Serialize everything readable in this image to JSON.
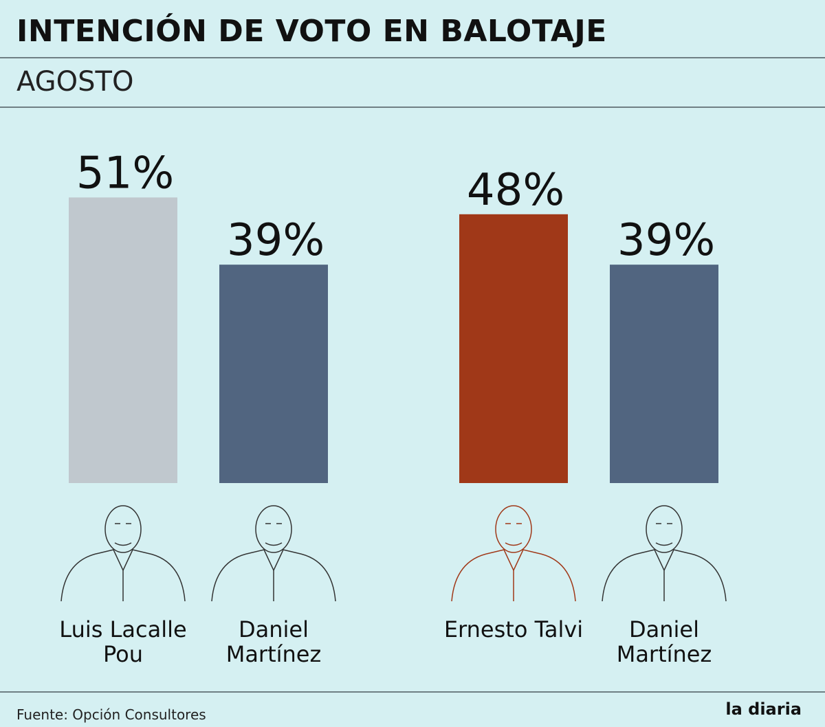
{
  "chart_data": {
    "type": "bar",
    "title": "INTENCIÓN DE VOTO EN BALOTAJE",
    "subtitle": "AGOSTO",
    "categories": [
      "Luis Lacalle Pou",
      "Daniel Martínez",
      "Ernesto Talvi",
      "Daniel Martínez"
    ],
    "values": [
      51,
      39,
      48,
      39
    ],
    "value_labels": [
      "51%",
      "39%",
      "48%",
      "39%"
    ],
    "colors": [
      "#c0c8ce",
      "#516580",
      "#a03818",
      "#516580"
    ]
  },
  "source": "Fuente: Opción Consultores",
  "brand": "la diaria"
}
